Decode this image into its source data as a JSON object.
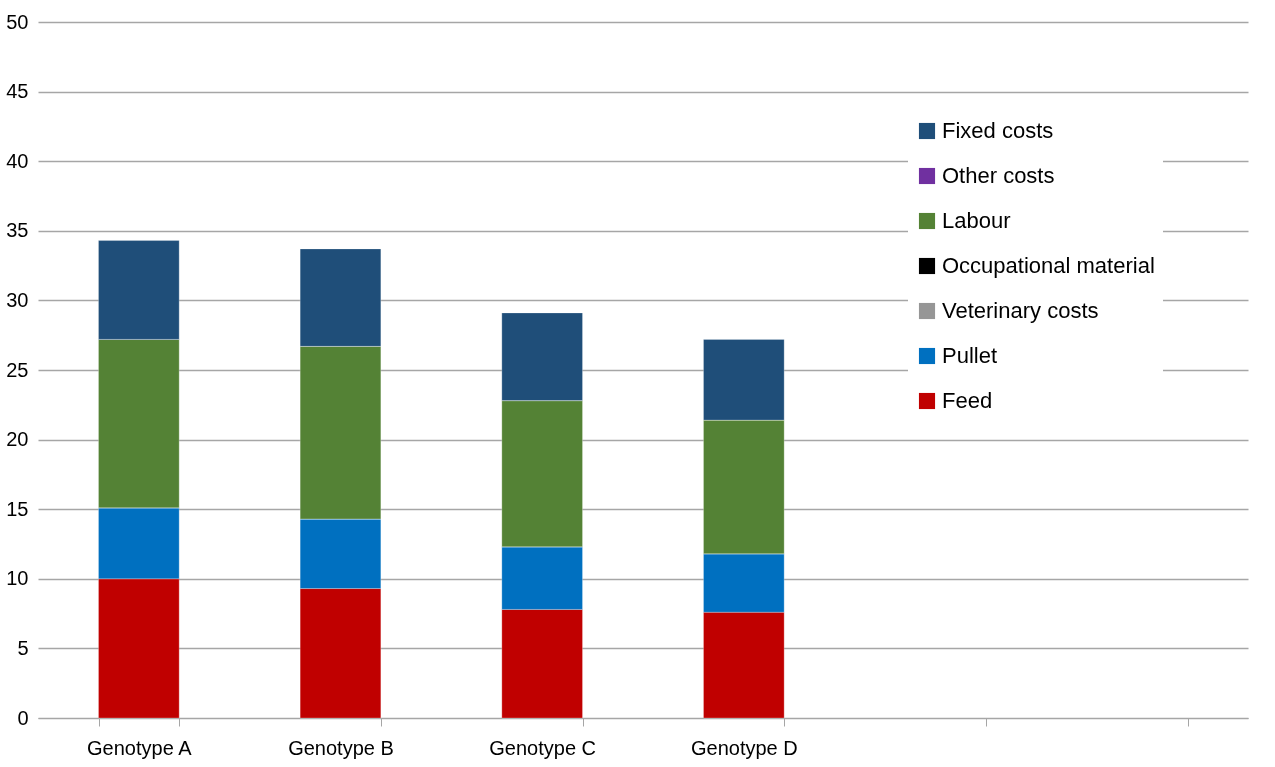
{
  "chart_data": {
    "type": "bar",
    "stacked": true,
    "categories": [
      "Genotype A",
      "Genotype B",
      "Genotype C",
      "Genotype D",
      null,
      null
    ],
    "series": [
      {
        "name": "Feed",
        "color": "#c00000",
        "values": [
          10.0,
          9.3,
          7.8,
          7.6,
          null,
          null
        ]
      },
      {
        "name": "Pullet",
        "color": "#0070c0",
        "values": [
          5.1,
          5.0,
          4.5,
          4.2,
          null,
          null
        ]
      },
      {
        "name": "Veterinary costs",
        "color": "#969696",
        "values": [
          0,
          0,
          0,
          0,
          null,
          null
        ]
      },
      {
        "name": "Occupational material",
        "color": "#000000",
        "values": [
          0,
          0,
          0,
          0,
          null,
          null
        ]
      },
      {
        "name": "Labour",
        "color": "#548235",
        "values": [
          12.1,
          12.4,
          10.5,
          9.6,
          null,
          null
        ]
      },
      {
        "name": "Other costs",
        "color": "#7030a0",
        "values": [
          0,
          0,
          0,
          0,
          null,
          null
        ]
      },
      {
        "name": "Fixed costs",
        "color": "#1f4e79",
        "values": [
          7.1,
          7.0,
          6.3,
          5.8,
          null,
          null
        ]
      }
    ],
    "ylim": [
      0,
      50
    ],
    "yticks": [
      0,
      5,
      10,
      15,
      20,
      25,
      30,
      35,
      40,
      45,
      50
    ],
    "grid": "y",
    "legend": "top right"
  }
}
